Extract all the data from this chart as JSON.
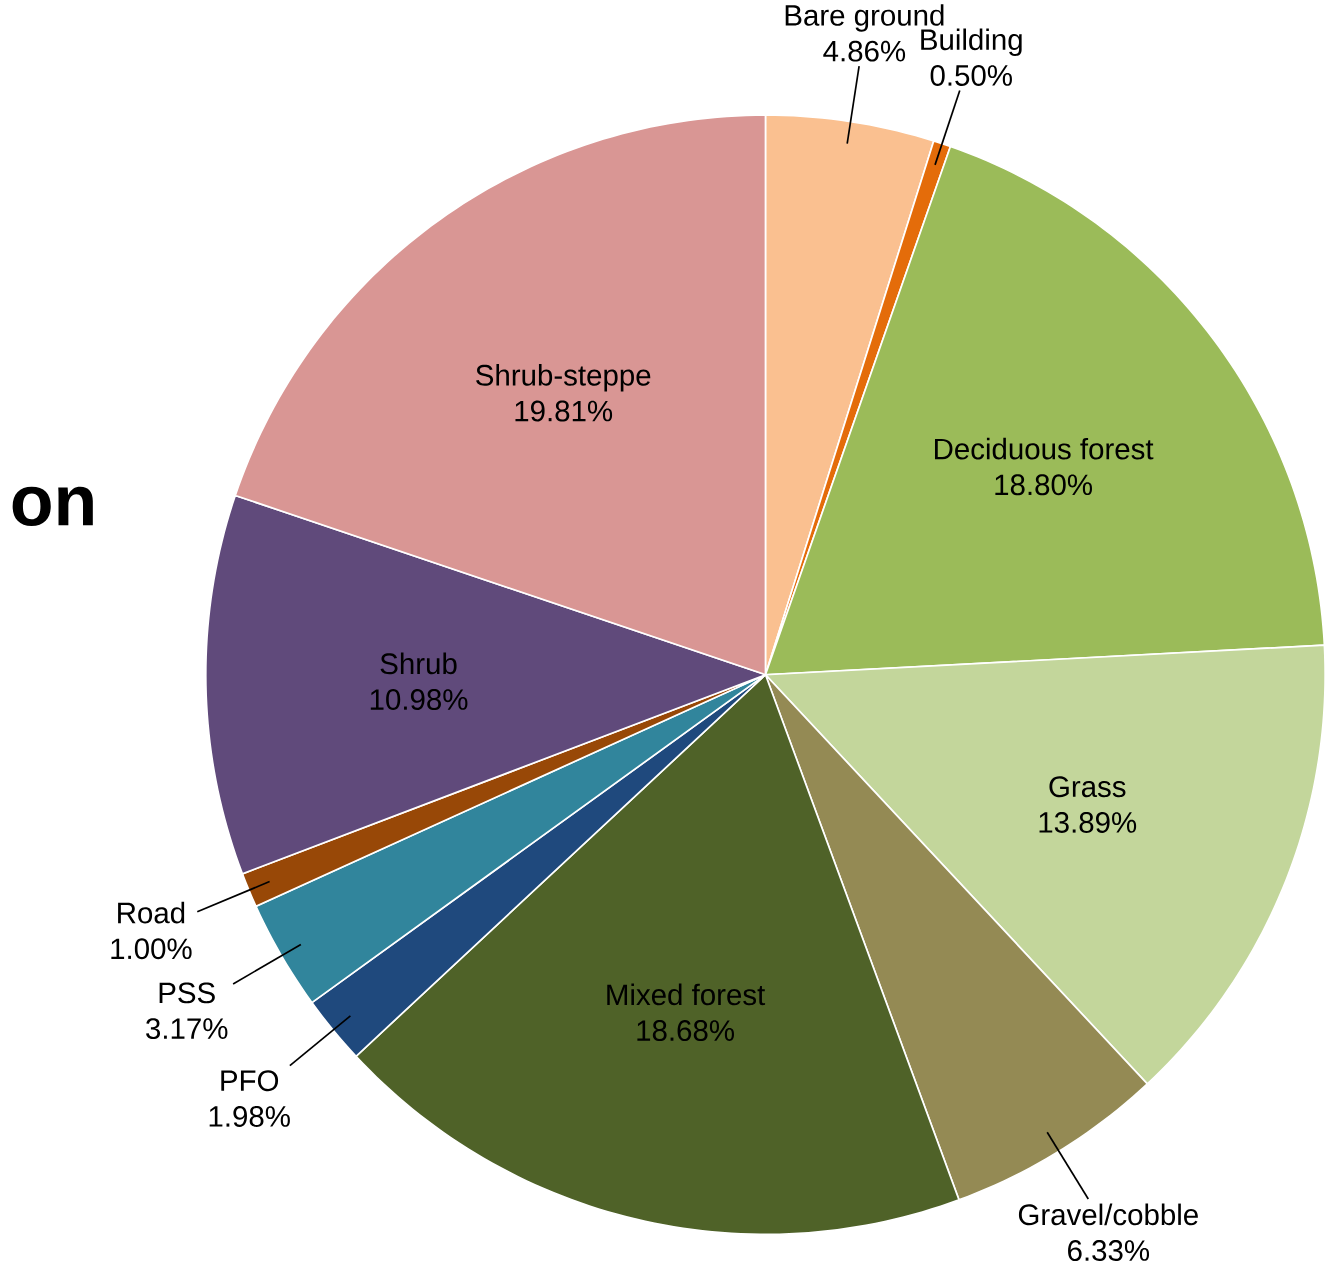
{
  "chart_data": {
    "type": "pie",
    "categories": [
      "Bare ground",
      "Building",
      "Deciduous forest",
      "Grass",
      "Gravel/cobble",
      "Mixed forest",
      "PFO",
      "PSS",
      "Road",
      "Shrub",
      "Shrub-steppe"
    ],
    "values": [
      4.86,
      0.5,
      18.8,
      13.89,
      6.33,
      18.68,
      1.98,
      3.17,
      1.0,
      10.98,
      19.81
    ],
    "value_labels": [
      "4.86%",
      "0.50%",
      "18.80%",
      "13.89%",
      "6.33%",
      "18.68%",
      "1.98%",
      "3.17%",
      "1.00%",
      "10.98%",
      "19.81%"
    ],
    "colors": [
      "#fac090",
      "#e46c0a",
      "#9bbb59",
      "#c3d69b",
      "#948a54",
      "#4f6228",
      "#1f497d",
      "#31859c",
      "#984807",
      "#604a7b",
      "#d99694"
    ],
    "annotations": [
      "on"
    ]
  }
}
